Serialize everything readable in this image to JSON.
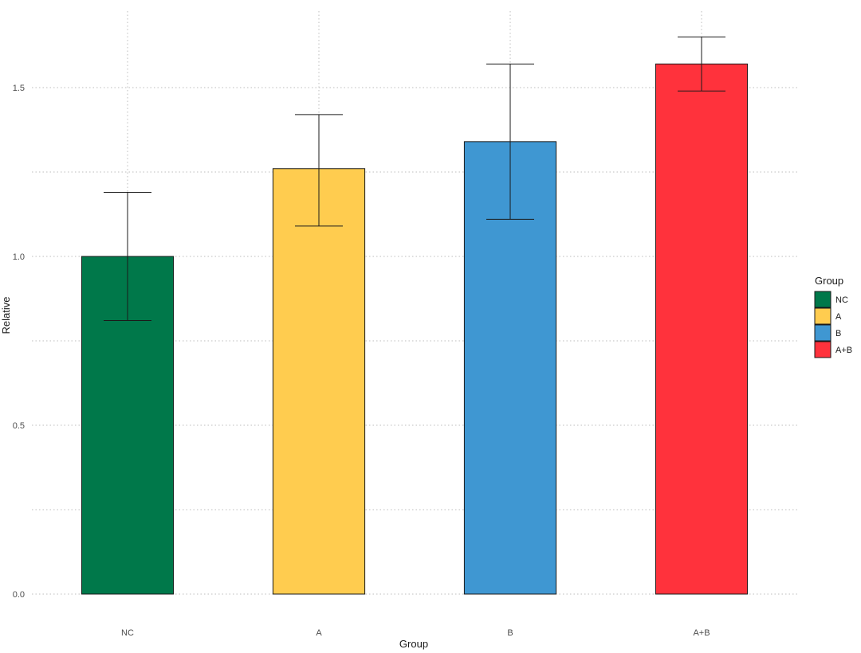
{
  "chart_data": {
    "type": "bar",
    "title": "",
    "xlabel": "Group",
    "ylabel": "Relative",
    "categories": [
      "NC",
      "A",
      "B",
      "A+B"
    ],
    "values": [
      1.0,
      1.26,
      1.34,
      1.57
    ],
    "error_lower": [
      0.81,
      1.09,
      1.11,
      1.49
    ],
    "error_upper": [
      1.19,
      1.42,
      1.57,
      1.65
    ],
    "colors": [
      "#00784A",
      "#FFCC4F",
      "#3F97D2",
      "#FF323C"
    ],
    "ylim": [
      0,
      1.72
    ],
    "yticks": [
      0.0,
      0.5,
      1.0,
      1.5
    ],
    "ytick_labels": [
      "0.0",
      "0.5",
      "1.0",
      "1.5"
    ],
    "grid": true,
    "legend": {
      "title": "Group",
      "entries": [
        "NC",
        "A",
        "B",
        "A+B"
      ],
      "placement": "right"
    }
  }
}
